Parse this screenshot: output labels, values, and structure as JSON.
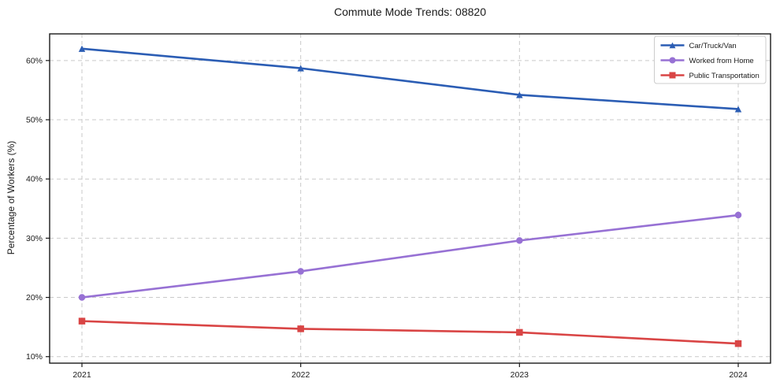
{
  "chart_data": {
    "type": "line",
    "title": "Commute Mode Trends: 08820",
    "xlabel": "",
    "ylabel": "Percentage of Workers (%)",
    "categories": [
      "2021",
      "2022",
      "2023",
      "2024"
    ],
    "y_ticks": [
      10,
      20,
      30,
      40,
      50,
      60
    ],
    "y_tick_labels": [
      "10%",
      "20%",
      "30%",
      "40%",
      "50%",
      "60%"
    ],
    "ylim": [
      8.9,
      64.5
    ],
    "grid": true,
    "grid_style": "dashed",
    "legend_position": "upper right",
    "series": [
      {
        "name": "Car/Truck/Van",
        "color": "#2b5db4",
        "marker": "triangle",
        "values": [
          62.0,
          58.7,
          54.2,
          51.8
        ]
      },
      {
        "name": "Worked from Home",
        "color": "#9771d4",
        "marker": "circle",
        "values": [
          20.0,
          24.4,
          29.6,
          33.9
        ]
      },
      {
        "name": "Public Transportation",
        "color": "#d94545",
        "marker": "square",
        "values": [
          16.0,
          14.7,
          14.1,
          12.2
        ]
      }
    ]
  },
  "style_colors": {
    "grid": "#c9c9c9",
    "spine": "#1a1a1a",
    "tick_text": "#1a1a1a",
    "legend_border": "#cccccc",
    "legend_bg": "#ffffff"
  }
}
